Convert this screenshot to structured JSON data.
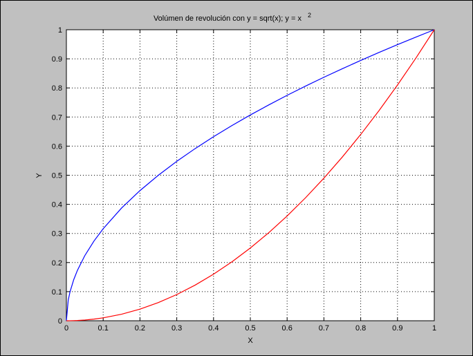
{
  "chart_data": {
    "type": "line",
    "title": "Volúmen de revolución con y = sqrt(x); y = x",
    "title_superscript": "2",
    "xlabel": "X",
    "ylabel": "Y",
    "xlim": [
      0,
      1
    ],
    "ylim": [
      0,
      1
    ],
    "grid": true,
    "x_ticks": [
      "0",
      "0.1",
      "0.2",
      "0.3",
      "0.4",
      "0.5",
      "0.6",
      "0.7",
      "0.8",
      "0.9",
      "1"
    ],
    "y_ticks": [
      "0",
      "0.1",
      "0.2",
      "0.3",
      "0.4",
      "0.5",
      "0.6",
      "0.7",
      "0.8",
      "0.9",
      "1"
    ],
    "x": [
      0,
      0.005,
      0.01,
      0.02,
      0.03,
      0.05,
      0.075,
      0.1,
      0.15,
      0.2,
      0.25,
      0.3,
      0.35,
      0.4,
      0.45,
      0.5,
      0.55,
      0.6,
      0.65,
      0.7,
      0.75,
      0.8,
      0.85,
      0.9,
      0.95,
      1
    ],
    "series": [
      {
        "color": "#0000ff",
        "values": [
          0,
          0.0707,
          0.1,
          0.1414,
          0.1732,
          0.2236,
          0.2739,
          0.3162,
          0.3873,
          0.4472,
          0.5,
          0.5477,
          0.5916,
          0.6325,
          0.6708,
          0.7071,
          0.7416,
          0.7746,
          0.8062,
          0.8367,
          0.866,
          0.8944,
          0.922,
          0.9487,
          0.9747,
          1
        ]
      },
      {
        "color": "#ff0000",
        "values": [
          0,
          2.5e-05,
          0.0001,
          0.0004,
          0.0009,
          0.0025,
          0.0056,
          0.01,
          0.0225,
          0.04,
          0.0625,
          0.09,
          0.1225,
          0.16,
          0.2025,
          0.25,
          0.3025,
          0.36,
          0.4225,
          0.49,
          0.5625,
          0.64,
          0.7225,
          0.81,
          0.9025,
          1
        ]
      }
    ]
  }
}
